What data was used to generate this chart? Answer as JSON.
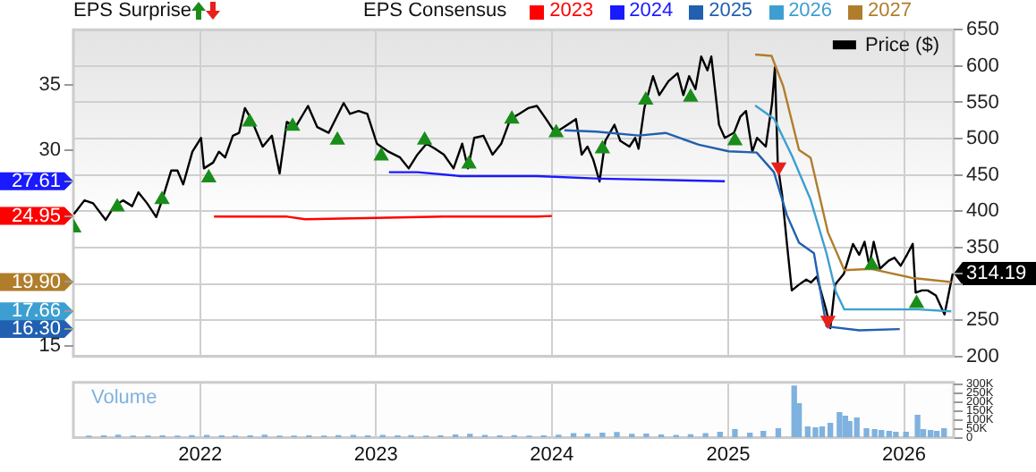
{
  "chart_data": {
    "type": "line",
    "legend_title": "EPS Consensus",
    "annotations": [
      "EPS Surprise"
    ],
    "xlim": [
      "2021-04-13",
      "2026-04-14"
    ],
    "xticks": [
      "2022",
      "2023",
      "2024",
      "2025",
      "2026"
    ],
    "ylim": [
      14.2,
      39.2
    ],
    "yticks": [
      15,
      {
        "value": 16.3,
        "label": "16.30"
      },
      {
        "value": 17.66,
        "label": "17.66"
      },
      {
        "value": 19.9,
        "label": "19.90"
      },
      {
        "value": 24.95,
        "label": "24.95"
      },
      {
        "value": 27.61,
        "label": "27.61"
      },
      30,
      35
    ],
    "y2lim": [
      200,
      650
    ],
    "y2ticks": [
      200,
      250,
      {
        "value": 300,
        "label": null
      },
      {
        "value": 314.19,
        "label": "314.19"
      },
      350,
      400,
      450,
      500,
      550,
      600,
      650
    ],
    "y3lim": [
      0,
      310000
    ],
    "y3ticks": [
      0,
      {
        "value": 50000,
        "label": "50K"
      },
      {
        "value": 100000,
        "label": "100K"
      },
      {
        "value": 150000,
        "label": "150K"
      },
      {
        "value": 200000,
        "label": "200K"
      },
      {
        "value": 250000,
        "label": "250K"
      },
      {
        "value": 300000,
        "label": "300K"
      }
    ],
    "grid": true,
    "legend": "top",
    "series": [
      {
        "name": "2023",
        "color": "#ff0000",
        "x": [
          "2022-01-30",
          "2022-07-01",
          "2022-08-07",
          "2023-01-02",
          "2023-05-21",
          "2023-12-01",
          "2024-01-01"
        ],
        "values": [
          24.9,
          24.9,
          24.7,
          24.8,
          24.9,
          24.9,
          24.95
        ]
      },
      {
        "name": "2024",
        "color": "#1a1aff",
        "x": [
          "2023-01-28",
          "2023-03-28",
          "2023-06-25",
          "2023-12-01",
          "2024-04-12",
          "2024-12-25"
        ],
        "values": [
          28.3,
          28.3,
          28.0,
          28.0,
          27.8,
          27.61
        ]
      },
      {
        "name": "2025",
        "color": "#2160b0",
        "x": [
          "2024-01-27",
          "2024-04-02",
          "2024-06-30",
          "2024-08-24",
          "2024-11-01",
          "2025-01-02",
          "2025-03-01",
          "2025-04-06",
          "2025-05-03",
          "2025-05-28",
          "2025-06-28",
          "2025-07-24",
          "2025-09-30",
          "2025-12-23"
        ],
        "values": [
          31.5,
          31.4,
          31.1,
          31.3,
          30.4,
          29.9,
          29.8,
          28.3,
          25.0,
          22.9,
          22.1,
          16.5,
          16.2,
          16.3
        ]
      },
      {
        "name": "2026",
        "color": "#3d9fd1",
        "x": [
          "2025-02-26",
          "2025-04-06",
          "2025-05-14",
          "2025-06-21",
          "2025-07-24",
          "2025-08-12",
          "2025-08-30",
          "2026-01-30",
          "2026-04-09"
        ],
        "values": [
          33.4,
          32.4,
          29.5,
          26.2,
          22.1,
          19.2,
          17.8,
          17.8,
          17.66
        ]
      },
      {
        "name": "2027",
        "color": "#b07d2b",
        "x": [
          "2025-02-26",
          "2025-04-01",
          "2025-04-25",
          "2025-05-28",
          "2025-06-21",
          "2025-07-27",
          "2025-08-30",
          "2025-10-25",
          "2026-01-19",
          "2026-04-09"
        ],
        "values": [
          37.3,
          37.2,
          34.9,
          30.0,
          29.4,
          23.7,
          20.8,
          20.9,
          20.2,
          19.9
        ]
      },
      {
        "name": "Price ($)",
        "color": "#000000",
        "axis": "y2",
        "x": [
          "2021-04-14",
          "2021-05-06",
          "2021-05-24",
          "2021-06-19",
          "2021-07-07",
          "2021-07-25",
          "2021-08-13",
          "2021-08-26",
          "2021-09-13",
          "2021-10-02",
          "2021-10-14",
          "2021-11-02",
          "2021-11-15",
          "2021-11-27",
          "2021-12-16",
          "2022-01-03",
          "2022-01-09",
          "2022-01-28",
          "2022-02-09",
          "2022-02-22",
          "2022-03-10",
          "2022-03-23",
          "2022-04-04",
          "2022-04-17",
          "2022-05-11",
          "2022-05-30",
          "2022-06-15",
          "2022-06-30",
          "2022-07-18",
          "2022-08-13",
          "2022-09-01",
          "2022-09-25",
          "2022-10-26",
          "2022-11-08",
          "2022-11-26",
          "2022-12-14",
          "2023-01-03",
          "2023-01-27",
          "2023-02-20",
          "2023-03-10",
          "2023-03-28",
          "2023-04-16",
          "2023-05-04",
          "2023-05-22",
          "2023-06-11",
          "2023-06-29",
          "2023-07-11",
          "2023-07-24",
          "2023-08-12",
          "2023-08-31",
          "2023-09-18",
          "2023-10-07",
          "2023-10-25",
          "2023-11-13",
          "2023-12-01",
          "2023-12-20",
          "2024-01-08",
          "2024-02-02",
          "2024-02-20",
          "2024-03-03",
          "2024-03-15",
          "2024-03-27",
          "2024-04-09",
          "2024-04-21",
          "2024-05-10",
          "2024-05-22",
          "2024-06-10",
          "2024-06-22",
          "2024-06-29",
          "2024-07-11",
          "2024-07-29",
          "2024-08-11",
          "2024-08-30",
          "2024-09-18",
          "2024-09-30",
          "2024-10-12",
          "2024-10-25",
          "2024-11-06",
          "2024-11-19",
          "2024-11-27",
          "2024-12-13",
          "2024-12-25",
          "2025-01-13",
          "2025-01-26",
          "2025-02-07",
          "2025-02-20",
          "2025-03-02",
          "2025-03-20",
          "2025-04-02",
          "2025-04-08",
          "2025-04-14",
          "2025-04-23",
          "2025-05-03",
          "2025-05-13",
          "2025-05-28",
          "2025-06-12",
          "2025-06-22",
          "2025-07-04",
          "2025-07-23",
          "2025-08-01",
          "2025-08-11",
          "2025-08-29",
          "2025-09-17",
          "2025-09-30",
          "2025-10-11",
          "2025-10-21",
          "2025-10-30",
          "2025-11-12",
          "2025-11-30",
          "2025-12-12",
          "2025-12-25",
          "2026-01-07",
          "2026-01-19",
          "2026-01-25",
          "2026-02-07",
          "2026-02-19",
          "2026-03-08",
          "2026-03-26",
          "2026-04-12"
        ],
        "values": [
          396,
          415,
          411,
          388,
          407,
          415,
          407,
          426,
          411,
          392,
          415,
          456,
          456,
          437,
          482,
          501,
          459,
          467,
          482,
          474,
          504,
          508,
          542,
          527,
          489,
          504,
          452,
          523,
          516,
          545,
          516,
          508,
          549,
          534,
          538,
          534,
          493,
          482,
          474,
          459,
          478,
          493,
          486,
          478,
          459,
          493,
          459,
          501,
          504,
          478,
          493,
          527,
          534,
          542,
          545,
          527,
          508,
          519,
          527,
          478,
          489,
          471,
          441,
          497,
          519,
          497,
          489,
          501,
          486,
          542,
          586,
          560,
          579,
          590,
          560,
          586,
          568,
          613,
          594,
          613,
          519,
          501,
          508,
          530,
          538,
          482,
          501,
          489,
          549,
          598,
          463,
          422,
          355,
          291,
          299,
          306,
          302,
          310,
          265,
          239,
          299,
          314,
          355,
          340,
          358,
          325,
          358,
          321,
          332,
          336,
          325,
          340,
          355,
          288,
          291,
          291,
          284,
          258,
          314.19
        ]
      },
      {
        "type": "scatter",
        "color": "#1a8c1a",
        "marker": "triangle",
        "axis": "y2",
        "x": [
          "2021-04-14",
          "2021-07-13",
          "2021-10-14",
          "2022-01-19",
          "2022-04-14",
          "2022-07-12",
          "2022-10-13",
          "2023-01-12",
          "2023-04-12",
          "2023-07-13",
          "2023-10-10",
          "2024-01-10",
          "2024-04-15",
          "2024-07-14",
          "2024-10-15",
          "2025-01-15",
          "2025-10-26",
          "2026-01-27"
        ],
        "values": [
          377,
          406,
          416,
          446,
          523,
          517,
          498,
          476,
          498,
          465,
          527,
          508,
          486,
          553,
          557,
          497,
          326,
          273
        ]
      },
      {
        "type": "scatter",
        "color": "#e8201a",
        "marker": "triangle",
        "axis": "y2",
        "x": [
          "2025-04-16",
          "2025-07-27"
        ],
        "values": [
          461,
          250
        ]
      },
      {
        "type": "bar",
        "name": "Volume",
        "color": "#7fb2de",
        "axis": "y3",
        "x": [
          "2021-05-15",
          "2021-06-15",
          "2021-07-15",
          "2021-08-15",
          "2021-09-15",
          "2021-10-15",
          "2021-11-15",
          "2021-12-15",
          "2022-01-15",
          "2022-02-15",
          "2022-03-15",
          "2022-04-15",
          "2022-05-15",
          "2022-06-15",
          "2022-07-15",
          "2022-08-15",
          "2022-09-15",
          "2022-10-15",
          "2022-11-15",
          "2022-12-15",
          "2023-01-15",
          "2023-02-15",
          "2023-03-15",
          "2023-04-15",
          "2023-05-15",
          "2023-06-15",
          "2023-07-15",
          "2023-08-15",
          "2023-09-15",
          "2023-10-15",
          "2023-11-15",
          "2023-12-15",
          "2024-01-15",
          "2024-02-15",
          "2024-03-15",
          "2024-04-15",
          "2024-05-15",
          "2024-06-15",
          "2024-07-15",
          "2024-08-15",
          "2024-09-15",
          "2024-10-15",
          "2024-11-15",
          "2024-12-15",
          "2025-01-15",
          "2025-02-15",
          "2025-03-15",
          "2025-04-15",
          "2025-05-18",
          "2025-05-28",
          "2025-06-15",
          "2025-07-01",
          "2025-07-15",
          "2025-08-01",
          "2025-08-20",
          "2025-09-01",
          "2025-09-10",
          "2025-09-25",
          "2025-10-15",
          "2025-11-01",
          "2025-11-15",
          "2025-12-01",
          "2025-12-15",
          "2026-01-05",
          "2026-01-29",
          "2026-02-10",
          "2026-02-25",
          "2026-03-10",
          "2026-03-25"
        ],
        "values": [
          8000,
          10000,
          14000,
          9000,
          8000,
          10000,
          9000,
          11000,
          12000,
          10000,
          9000,
          10000,
          13000,
          9000,
          8000,
          10000,
          9000,
          11000,
          12000,
          10000,
          12000,
          10000,
          11000,
          9000,
          10000,
          15000,
          18000,
          12000,
          10000,
          11000,
          9000,
          10000,
          14000,
          22000,
          20000,
          25000,
          28000,
          18000,
          20000,
          15000,
          12000,
          16000,
          22000,
          30000,
          45000,
          25000,
          35000,
          50000,
          290000,
          190000,
          60000,
          55000,
          60000,
          80000,
          140000,
          120000,
          90000,
          110000,
          50000,
          45000,
          40000,
          35000,
          30000,
          30000,
          125000,
          45000,
          40000,
          35000,
          50000
        ]
      }
    ]
  }
}
